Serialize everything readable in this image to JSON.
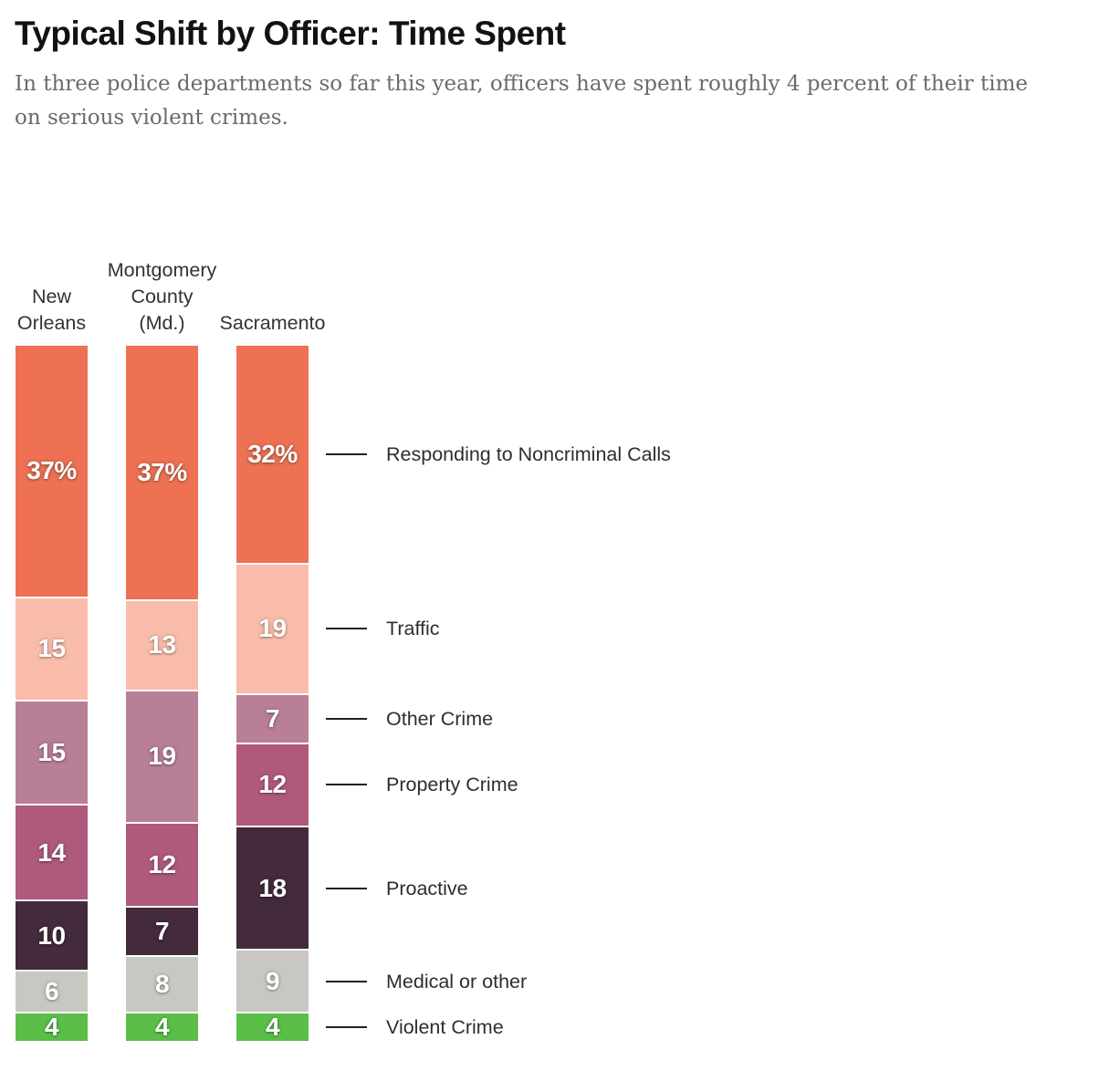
{
  "header": {
    "title": "Typical Shift by Officer: Time Spent",
    "subtitle_lines": [
      "In three police departments so far this year, officers have spent roughly 4 percent of their time",
      "on serious violent crimes."
    ]
  },
  "chart_data": {
    "type": "bar",
    "variant": "stacked-vertical-percent",
    "title": "Typical Shift by Officer: Time Spent",
    "subtitle": "In three police departments so far this year, officers have spent roughly 4 percent of their time on serious violent crimes.",
    "unit": "percent of officer shift time",
    "value_range": [
      0,
      100
    ],
    "grid": false,
    "legend_position": "right-of-last-bar",
    "categories": [
      "Responding to Noncriminal Calls",
      "Traffic",
      "Other Crime",
      "Property Crime",
      "Proactive",
      "Medical or other",
      "Violent Crime"
    ],
    "category_colors": [
      "#ED7152",
      "#FABCAA",
      "#B87F97",
      "#AF5A7D",
      "#432A3C",
      "#C9C7C2",
      "#5ABE48"
    ],
    "label_text_color": "#ffffff",
    "leader_line_color": "#222222",
    "series": [
      {
        "name": "New Orleans",
        "display_label": "New\nOrleans",
        "values": [
          37,
          15,
          15,
          14,
          10,
          6,
          4
        ],
        "labels": [
          "37%",
          "15",
          "15",
          "14",
          "10",
          "6",
          "4"
        ]
      },
      {
        "name": "Montgomery County (Md.)",
        "display_label": "Montgomery\nCounty\n(Md.)",
        "values": [
          37,
          13,
          19,
          12,
          7,
          8,
          4
        ],
        "labels": [
          "37%",
          "13",
          "19",
          "12",
          "7",
          "8",
          "4"
        ]
      },
      {
        "name": "Sacramento",
        "display_label": "Sacramento",
        "values": [
          32,
          19,
          7,
          12,
          18,
          9,
          4
        ],
        "labels": [
          "32%",
          "19",
          "7",
          "12",
          "18",
          "9",
          "4"
        ]
      }
    ]
  }
}
